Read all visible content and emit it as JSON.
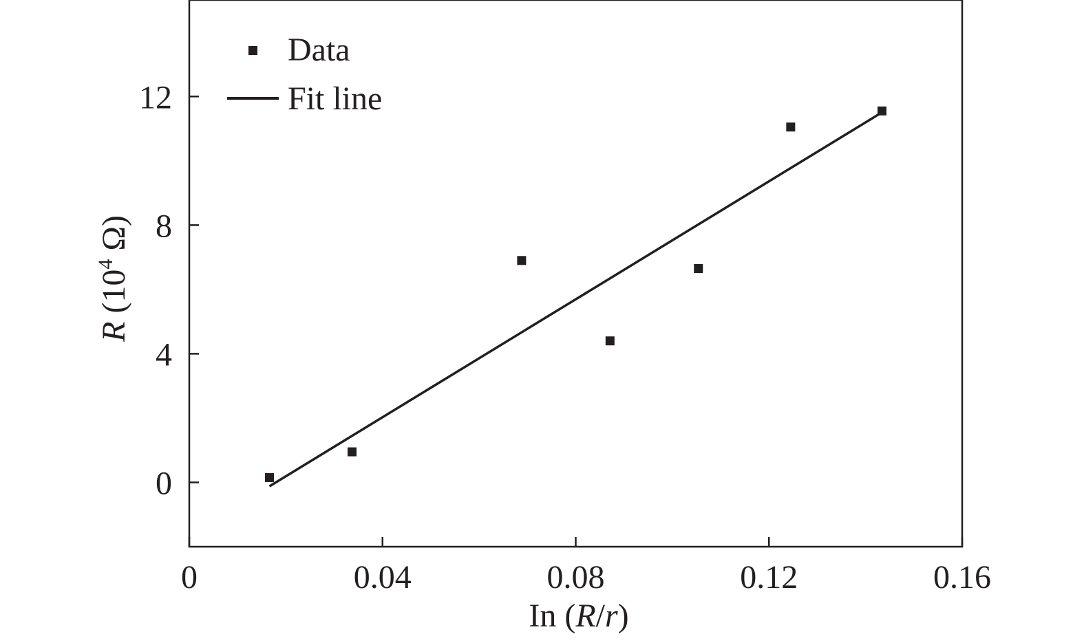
{
  "chart_data": {
    "type": "scatter",
    "xlabel": {
      "prefix": "In (",
      "italic_a": "R",
      "slash": "/",
      "italic_b": "r",
      "suffix": ")"
    },
    "ylabel": {
      "italic": "R",
      "unit_open": " (10",
      "unit_sup": "4",
      "unit_close": " Ω)"
    },
    "xlim": [
      0,
      0.16
    ],
    "ylim": [
      -2,
      15
    ],
    "xticks": [
      0,
      0.04,
      0.08,
      0.12,
      0.16
    ],
    "xtick_labels": [
      "0",
      "0.04",
      "0.08",
      "0.12",
      "0.16"
    ],
    "yticks": [
      0,
      4,
      8,
      12
    ],
    "ytick_labels": [
      "0",
      "4",
      "8",
      "12"
    ],
    "grid": false,
    "legend_position": "top-left",
    "series": [
      {
        "name": "Data",
        "kind": "scatter",
        "marker": "square",
        "color": "#231f20",
        "points": [
          [
            0.0166,
            0.15
          ],
          [
            0.0337,
            0.95
          ],
          [
            0.0688,
            6.9
          ],
          [
            0.0871,
            4.4
          ],
          [
            0.1054,
            6.65
          ],
          [
            0.1245,
            11.05
          ],
          [
            0.1434,
            11.55
          ]
        ]
      },
      {
        "name": "Fit line",
        "kind": "line",
        "color": "#231f20",
        "points": [
          [
            0.0166,
            -0.12
          ],
          [
            0.143,
            11.47
          ]
        ]
      }
    ]
  }
}
